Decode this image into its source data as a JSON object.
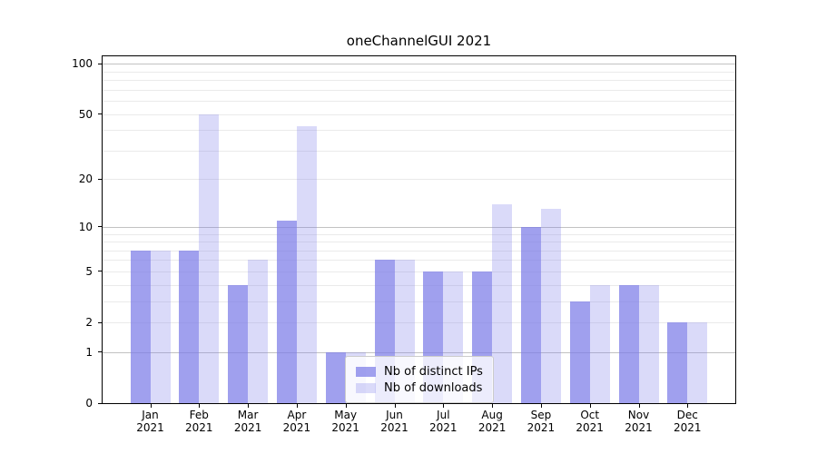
{
  "title": "oneChannelGUI 2021",
  "legend": {
    "items": [
      {
        "label": "Nb of distinct IPs"
      },
      {
        "label": "Nb of downloads"
      }
    ]
  },
  "chart_data": {
    "type": "bar",
    "title": "oneChannelGUI 2021",
    "categories": [
      "Jan 2021",
      "Feb 2021",
      "Mar 2021",
      "Apr 2021",
      "May 2021",
      "Jun 2021",
      "Jul 2021",
      "Aug 2021",
      "Sep 2021",
      "Oct 2021",
      "Nov 2021",
      "Dec 2021"
    ],
    "x_tick_line1": [
      "Jan",
      "Feb",
      "Mar",
      "Apr",
      "May",
      "Jun",
      "Jul",
      "Aug",
      "Sep",
      "Oct",
      "Nov",
      "Dec"
    ],
    "x_tick_line2": "2021",
    "series": [
      {
        "name": "Nb of distinct IPs",
        "color": "rgba(123,123,232,0.72)",
        "values": [
          7,
          7,
          4,
          11,
          1,
          6,
          5,
          5,
          10,
          3,
          4,
          2
        ]
      },
      {
        "name": "Nb of downloads",
        "color": "rgba(123,123,232,0.28)",
        "values": [
          7,
          50,
          6,
          42,
          1,
          6,
          5,
          14,
          13,
          4,
          4,
          2
        ]
      }
    ],
    "xlabel": "",
    "ylabel": "",
    "ylim": [
      0,
      100
    ],
    "y_scale": "log1p",
    "y_ticks": [
      0,
      1,
      2,
      5,
      10,
      20,
      50,
      100
    ],
    "y_major_gridlines": [
      1,
      10,
      100
    ],
    "y_minor_gridlines": [
      2,
      3,
      4,
      5,
      6,
      7,
      8,
      9,
      20,
      30,
      40,
      50,
      60,
      70,
      80,
      90
    ],
    "grid": "horizontal",
    "legend_position": "inside lower-center"
  },
  "colors": {
    "background": "#ffffff",
    "spine": "#000000",
    "major_grid": "#c2c2c2",
    "minor_grid": "#eaeaea",
    "bar_base": "#7b7be8",
    "legend_border": "#cccccc",
    "text": "#000000"
  }
}
